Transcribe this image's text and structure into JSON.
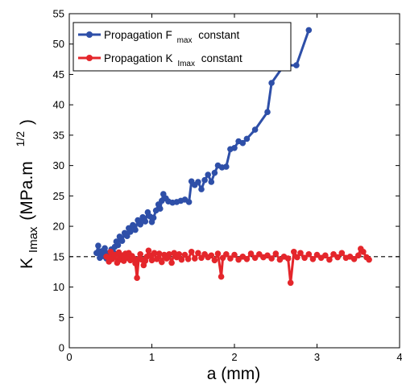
{
  "chart_data": {
    "type": "line",
    "xlim": [
      0,
      4
    ],
    "ylim": [
      0,
      55
    ],
    "xticks": [
      "0",
      "1",
      "2",
      "3",
      "4"
    ],
    "yticks": [
      "0",
      "5",
      "10",
      "15",
      "20",
      "25",
      "30",
      "35",
      "40",
      "45",
      "50",
      "55"
    ],
    "xlabel": "a (mm)",
    "ylabel": {
      "main": "K",
      "sub": "Imax",
      "unit": "(MPa.m",
      "sup": "1/2",
      "close": ")"
    },
    "reference_line": {
      "y": 15,
      "style": "dashed",
      "color": "#000000"
    },
    "legend_position": "top-left",
    "series": [
      {
        "name": "Propagation F max constant",
        "legend": {
          "text": "Propagation F",
          "sub": "max",
          "tail": "constant"
        },
        "color": "#2e4fa8",
        "points": [
          [
            0.33,
            15.6
          ],
          [
            0.35,
            16.8
          ],
          [
            0.37,
            14.8
          ],
          [
            0.39,
            15.9
          ],
          [
            0.41,
            15.1
          ],
          [
            0.43,
            16.4
          ],
          [
            0.45,
            14.7
          ],
          [
            0.47,
            15.6
          ],
          [
            0.49,
            15.0
          ],
          [
            0.51,
            16.2
          ],
          [
            0.53,
            15.8
          ],
          [
            0.55,
            16.6
          ],
          [
            0.57,
            17.5
          ],
          [
            0.59,
            16.9
          ],
          [
            0.61,
            18.3
          ],
          [
            0.64,
            17.6
          ],
          [
            0.67,
            18.9
          ],
          [
            0.7,
            18.4
          ],
          [
            0.72,
            19.7
          ],
          [
            0.74,
            19.1
          ],
          [
            0.77,
            20.2
          ],
          [
            0.8,
            19.4
          ],
          [
            0.83,
            21.0
          ],
          [
            0.86,
            20.3
          ],
          [
            0.89,
            21.5
          ],
          [
            0.92,
            20.8
          ],
          [
            0.95,
            22.3
          ],
          [
            0.98,
            21.6
          ],
          [
            1.0,
            20.7
          ],
          [
            1.02,
            21.4
          ],
          [
            1.05,
            22.6
          ],
          [
            1.08,
            23.6
          ],
          [
            1.1,
            22.9
          ],
          [
            1.12,
            24.2
          ],
          [
            1.14,
            25.3
          ],
          [
            1.17,
            24.6
          ],
          [
            1.2,
            24.1
          ],
          [
            1.25,
            23.9
          ],
          [
            1.3,
            24.0
          ],
          [
            1.35,
            24.2
          ],
          [
            1.4,
            24.4
          ],
          [
            1.45,
            24.0
          ],
          [
            1.48,
            27.4
          ],
          [
            1.52,
            26.8
          ],
          [
            1.56,
            27.3
          ],
          [
            1.6,
            26.1
          ],
          [
            1.64,
            27.6
          ],
          [
            1.68,
            28.5
          ],
          [
            1.72,
            27.3
          ],
          [
            1.76,
            28.8
          ],
          [
            1.8,
            30.0
          ],
          [
            1.85,
            29.7
          ],
          [
            1.9,
            29.8
          ],
          [
            1.95,
            32.7
          ],
          [
            2.0,
            32.9
          ],
          [
            2.05,
            34.0
          ],
          [
            2.1,
            33.7
          ],
          [
            2.15,
            34.4
          ],
          [
            2.25,
            35.9
          ],
          [
            2.4,
            38.8
          ],
          [
            2.45,
            43.6
          ],
          [
            2.6,
            46.5
          ],
          [
            2.75,
            46.5
          ],
          [
            2.9,
            52.3
          ]
        ]
      },
      {
        "name": "Propagation K Imax constant",
        "legend": {
          "text": "Propagation K",
          "sub": "Imax",
          "tail": "constant"
        },
        "color": "#e4262b",
        "points": [
          [
            0.45,
            15.0
          ],
          [
            0.48,
            14.2
          ],
          [
            0.5,
            15.8
          ],
          [
            0.52,
            14.6
          ],
          [
            0.55,
            15.3
          ],
          [
            0.58,
            14.0
          ],
          [
            0.6,
            15.7
          ],
          [
            0.62,
            14.5
          ],
          [
            0.64,
            15.2
          ],
          [
            0.66,
            14.3
          ],
          [
            0.68,
            15.5
          ],
          [
            0.7,
            14.8
          ],
          [
            0.72,
            15.6
          ],
          [
            0.74,
            14.4
          ],
          [
            0.76,
            15.1
          ],
          [
            0.78,
            14.7
          ],
          [
            0.8,
            13.9
          ],
          [
            0.82,
            11.5
          ],
          [
            0.84,
            14.6
          ],
          [
            0.86,
            15.4
          ],
          [
            0.88,
            14.5
          ],
          [
            0.9,
            13.6
          ],
          [
            0.92,
            14.3
          ],
          [
            0.94,
            15.0
          ],
          [
            0.96,
            16.0
          ],
          [
            0.98,
            15.2
          ],
          [
            1.0,
            14.4
          ],
          [
            1.03,
            15.6
          ],
          [
            1.06,
            14.6
          ],
          [
            1.09,
            15.5
          ],
          [
            1.12,
            14.1
          ],
          [
            1.15,
            15.3
          ],
          [
            1.18,
            14.7
          ],
          [
            1.21,
            15.4
          ],
          [
            1.24,
            14.0
          ],
          [
            1.27,
            15.6
          ],
          [
            1.3,
            14.9
          ],
          [
            1.33,
            15.4
          ],
          [
            1.36,
            14.5
          ],
          [
            1.4,
            15.3
          ],
          [
            1.44,
            14.6
          ],
          [
            1.48,
            15.8
          ],
          [
            1.52,
            14.7
          ],
          [
            1.56,
            15.6
          ],
          [
            1.6,
            14.8
          ],
          [
            1.64,
            15.4
          ],
          [
            1.68,
            14.9
          ],
          [
            1.72,
            15.2
          ],
          [
            1.76,
            14.4
          ],
          [
            1.8,
            15.5
          ],
          [
            1.84,
            11.7
          ],
          [
            1.86,
            14.8
          ],
          [
            1.9,
            15.4
          ],
          [
            1.95,
            14.7
          ],
          [
            2.0,
            15.3
          ],
          [
            2.05,
            14.5
          ],
          [
            2.1,
            15.0
          ],
          [
            2.15,
            14.6
          ],
          [
            2.2,
            15.5
          ],
          [
            2.25,
            14.8
          ],
          [
            2.3,
            15.4
          ],
          [
            2.35,
            14.9
          ],
          [
            2.4,
            15.2
          ],
          [
            2.45,
            14.7
          ],
          [
            2.5,
            15.5
          ],
          [
            2.55,
            14.5
          ],
          [
            2.6,
            15.0
          ],
          [
            2.65,
            14.7
          ],
          [
            2.68,
            10.7
          ],
          [
            2.72,
            15.8
          ],
          [
            2.76,
            14.9
          ],
          [
            2.8,
            15.6
          ],
          [
            2.85,
            14.8
          ],
          [
            2.9,
            15.4
          ],
          [
            2.95,
            14.6
          ],
          [
            3.0,
            15.3
          ],
          [
            3.05,
            14.8
          ],
          [
            3.1,
            15.2
          ],
          [
            3.15,
            14.5
          ],
          [
            3.2,
            15.4
          ],
          [
            3.25,
            14.9
          ],
          [
            3.3,
            15.6
          ],
          [
            3.35,
            14.8
          ],
          [
            3.4,
            15.0
          ],
          [
            3.45,
            14.6
          ],
          [
            3.5,
            15.2
          ],
          [
            3.53,
            16.3
          ],
          [
            3.56,
            15.8
          ],
          [
            3.6,
            14.9
          ],
          [
            3.63,
            14.5
          ]
        ]
      }
    ]
  }
}
